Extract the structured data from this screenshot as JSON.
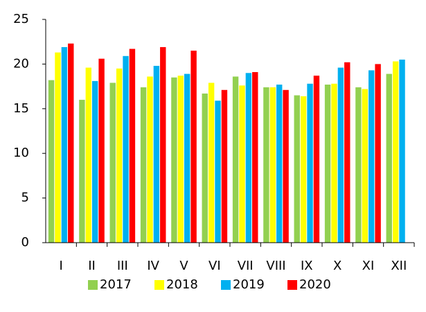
{
  "chart_data": {
    "type": "bar",
    "categories": [
      "I",
      "II",
      "III",
      "IV",
      "V",
      "VI",
      "VII",
      "VIII",
      "IX",
      "X",
      "XI",
      "XII"
    ],
    "series": [
      {
        "name": "2017",
        "color": "#92d050",
        "values": [
          18.2,
          16.0,
          17.9,
          17.4,
          18.5,
          16.7,
          18.6,
          17.4,
          16.5,
          17.7,
          17.4,
          18.9
        ]
      },
      {
        "name": "2018",
        "color": "#ffff00",
        "values": [
          21.3,
          19.6,
          19.5,
          18.6,
          18.7,
          17.9,
          17.6,
          17.4,
          16.4,
          17.8,
          17.2,
          20.3
        ]
      },
      {
        "name": "2019",
        "color": "#00b0f0",
        "values": [
          21.9,
          18.1,
          20.9,
          19.8,
          18.9,
          15.9,
          19.0,
          17.7,
          17.8,
          19.6,
          19.3,
          20.5
        ]
      },
      {
        "name": "2020",
        "color": "#ff0000",
        "values": [
          22.3,
          20.6,
          21.7,
          21.9,
          21.5,
          17.1,
          19.1,
          17.1,
          18.7,
          20.2,
          20.0,
          null
        ]
      }
    ],
    "ylim": [
      0,
      25
    ],
    "yticks": [
      0,
      5,
      10,
      15,
      20,
      25
    ],
    "grid": false,
    "legend": "bottom"
  }
}
